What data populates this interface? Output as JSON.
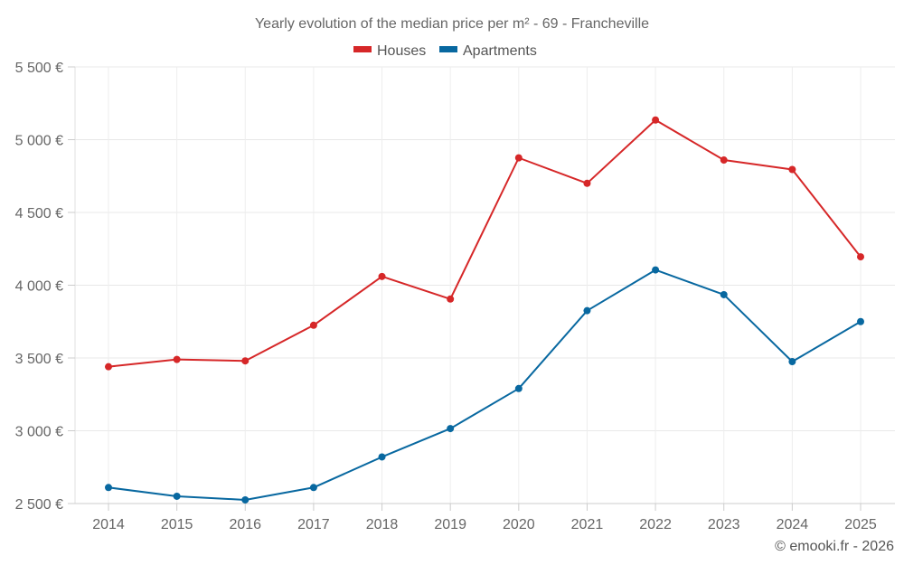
{
  "chart_data": {
    "type": "line",
    "title": "Yearly evolution of the median price per m² - 69 - Francheville",
    "xlabel": "",
    "ylabel": "",
    "x": [
      "2014",
      "2015",
      "2016",
      "2017",
      "2018",
      "2019",
      "2020",
      "2021",
      "2022",
      "2023",
      "2024",
      "2025"
    ],
    "ylim": [
      2500,
      5500
    ],
    "yticks": [
      2500,
      3000,
      3500,
      4000,
      4500,
      5000,
      5500
    ],
    "ytick_labels": [
      "2 500 €",
      "3 000 €",
      "3 500 €",
      "4 000 €",
      "4 500 €",
      "5 000 €",
      "5 500 €"
    ],
    "grid": true,
    "legend_position": "top-center",
    "series": [
      {
        "name": "Houses",
        "color": "#d62728",
        "values": [
          3440,
          3490,
          3480,
          3725,
          4060,
          3905,
          4875,
          4700,
          5135,
          4860,
          4795,
          4195
        ]
      },
      {
        "name": "Apartments",
        "color": "#0868a0",
        "values": [
          2610,
          2550,
          2525,
          2610,
          2820,
          3015,
          3290,
          3825,
          4105,
          3935,
          3475,
          3750
        ]
      }
    ],
    "credit": "© emooki.fr - 2026"
  }
}
